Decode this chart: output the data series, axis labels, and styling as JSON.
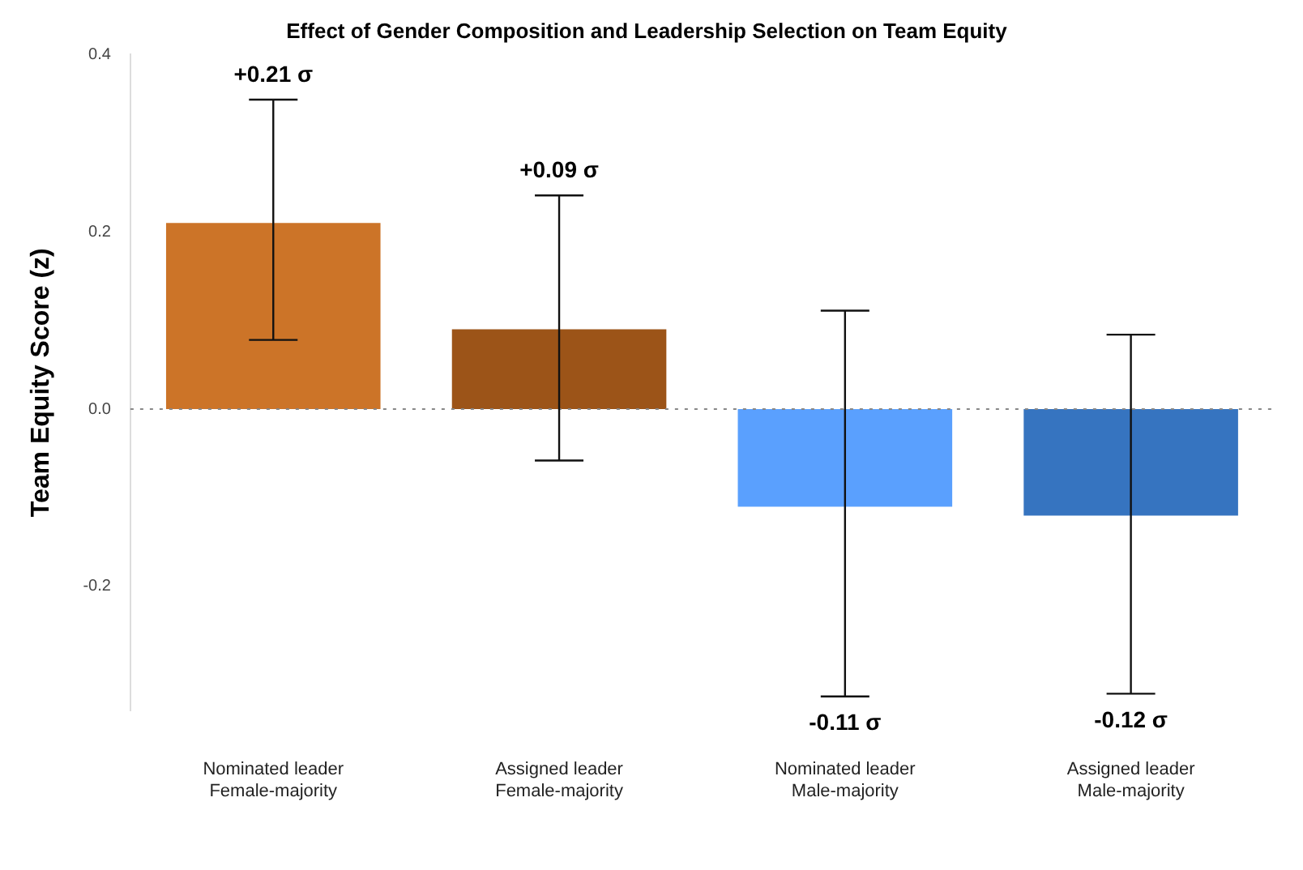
{
  "chart_data": {
    "type": "bar",
    "title": "Effect of Gender Composition and Leadership Selection on Team Equity",
    "ylabel": "Team Equity Score (z)",
    "categories": [
      "Nominated leader\nFemale-majority",
      "Assigned leader\nFemale-majority",
      "Nominated leader\nMale-majority",
      "Assigned leader\nMale-majority"
    ],
    "values": [
      0.21,
      0.09,
      -0.11,
      -0.12
    ],
    "colors": [
      "#cc7428",
      "#9c5418",
      "#5aa0fe",
      "#3674c0"
    ],
    "errors": [
      [
        0.078,
        0.349
      ],
      [
        -0.058,
        0.241
      ],
      [
        -0.324,
        0.111
      ],
      [
        -0.321,
        0.084
      ]
    ],
    "annotations": [
      {
        "text": "+0.21 σ",
        "x": "Nominated leader\nFemale-majority",
        "y": 0.349
      },
      {
        "text": "+0.09 σ",
        "x": "Assigned leader\nFemale-majority",
        "y": 0.241
      },
      {
        "text": "-0.11 σ",
        "x": "Nominated leader\nMale-majority",
        "y": -0.324
      },
      {
        "text": "-0.12 σ",
        "x": "Assigned leader\nMale-majority",
        "y": -0.321
      }
    ],
    "ylim": [
      -0.34,
      0.4
    ],
    "yticks": [
      {
        "value": -0.2,
        "label": "-0.2"
      },
      {
        "value": 0,
        "label": "0.0"
      },
      {
        "value": 0.2,
        "label": "0.2"
      },
      {
        "value": 0.4,
        "label": "0.4"
      }
    ],
    "ref_lines": [
      {
        "axis": "y",
        "value": 0,
        "color": "#888888",
        "line_style": "dotted"
      }
    ],
    "grid": false,
    "legend": false
  }
}
